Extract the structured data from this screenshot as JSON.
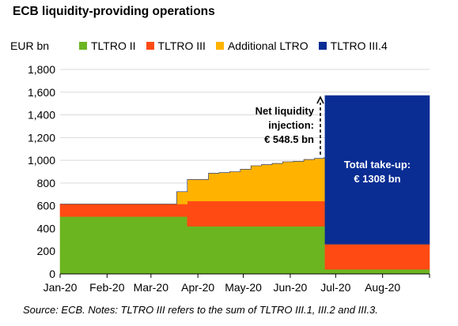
{
  "title": "ECB liquidity-providing operations",
  "unit_label": "EUR bn",
  "source": "Source: ECB. Notes: TLTRO III refers to the sum of TLTRO III.1, III.2 and III.3.",
  "colors": {
    "tltro2": "#6bb521",
    "tltro3": "#ff4a14",
    "additional_ltro": "#ffb300",
    "tltro34": "#0a2d94",
    "grid": "#d9d9d9",
    "axis": "#000000"
  },
  "legend": [
    {
      "label": "TLTRO II",
      "color": "#6bb521"
    },
    {
      "label": "TLTRO III",
      "color": "#ff4a14"
    },
    {
      "label": "Additional LTRO",
      "color": "#ffb300"
    },
    {
      "label": "TLTRO III.4",
      "color": "#0a2d94"
    }
  ],
  "annotations": {
    "net_liquidity": [
      "Net liquidity",
      "injection:",
      "€ 548.5 bn"
    ],
    "total_takeup": [
      "Total take-up:",
      "€ 1308 bn"
    ]
  },
  "chart_data": {
    "type": "area",
    "stacked": true,
    "ylim": [
      0,
      1800
    ],
    "yticks": [
      0,
      200,
      400,
      600,
      800,
      1000,
      1200,
      1400,
      1600,
      1800
    ],
    "ytick_labels": [
      "0",
      "200",
      "400",
      "600",
      "800",
      "1,000",
      "1,200",
      "1,400",
      "1,600",
      "1,800"
    ],
    "xlim": [
      "2020-01-01",
      "2020-09-01"
    ],
    "xticks": [
      "2020-01-01",
      "2020-02-01",
      "2020-03-01",
      "2020-04-01",
      "2020-05-01",
      "2020-06-01",
      "2020-07-01",
      "2020-08-01"
    ],
    "xtick_labels": [
      "Jan-20",
      "Feb-20",
      "Mar-20",
      "Apr-20",
      "May-20",
      "Jun-20",
      "Jul-20",
      "Aug-20"
    ],
    "grid": true,
    "legend_position": "top",
    "x": [
      "2020-01-01",
      "2020-03-11",
      "2020-03-18",
      "2020-03-19",
      "2020-03-24",
      "2020-03-25",
      "2020-03-31",
      "2020-04-08",
      "2020-04-15",
      "2020-04-22",
      "2020-04-29",
      "2020-05-06",
      "2020-05-13",
      "2020-05-20",
      "2020-05-27",
      "2020-06-03",
      "2020-06-10",
      "2020-06-17",
      "2020-06-23",
      "2020-06-24",
      "2020-06-30",
      "2020-07-07",
      "2020-07-14",
      "2020-07-21",
      "2020-07-28",
      "2020-08-04",
      "2020-08-11",
      "2020-08-18",
      "2020-08-25",
      "2020-09-01"
    ],
    "series": [
      {
        "name": "TLTRO II",
        "values": [
          505,
          505,
          505,
          505,
          505,
          420,
          420,
          420,
          420,
          420,
          420,
          420,
          420,
          420,
          420,
          420,
          420,
          420,
          420,
          40,
          40,
          40,
          40,
          40,
          40,
          40,
          40,
          40,
          40,
          40
        ]
      },
      {
        "name": "TLTRO III",
        "values": [
          110,
          110,
          110,
          110,
          110,
          222,
          222,
          222,
          222,
          222,
          222,
          222,
          222,
          222,
          222,
          222,
          222,
          222,
          222,
          222,
          222,
          222,
          222,
          222,
          222,
          222,
          222,
          222,
          222,
          222
        ]
      },
      {
        "name": "Additional LTRO",
        "values": [
          0,
          0,
          109,
          109,
          109,
          190,
          190,
          245,
          250,
          258,
          280,
          310,
          320,
          330,
          345,
          350,
          365,
          375,
          380,
          0,
          0,
          0,
          0,
          0,
          0,
          0,
          0,
          0,
          0,
          0
        ]
      },
      {
        "name": "TLTRO III.4",
        "values": [
          0,
          0,
          0,
          0,
          0,
          0,
          0,
          0,
          0,
          0,
          0,
          0,
          0,
          0,
          0,
          0,
          0,
          0,
          0,
          1308,
          1308,
          1308,
          1308,
          1308,
          1308,
          1308,
          1308,
          1308,
          1308,
          1308
        ]
      }
    ]
  }
}
